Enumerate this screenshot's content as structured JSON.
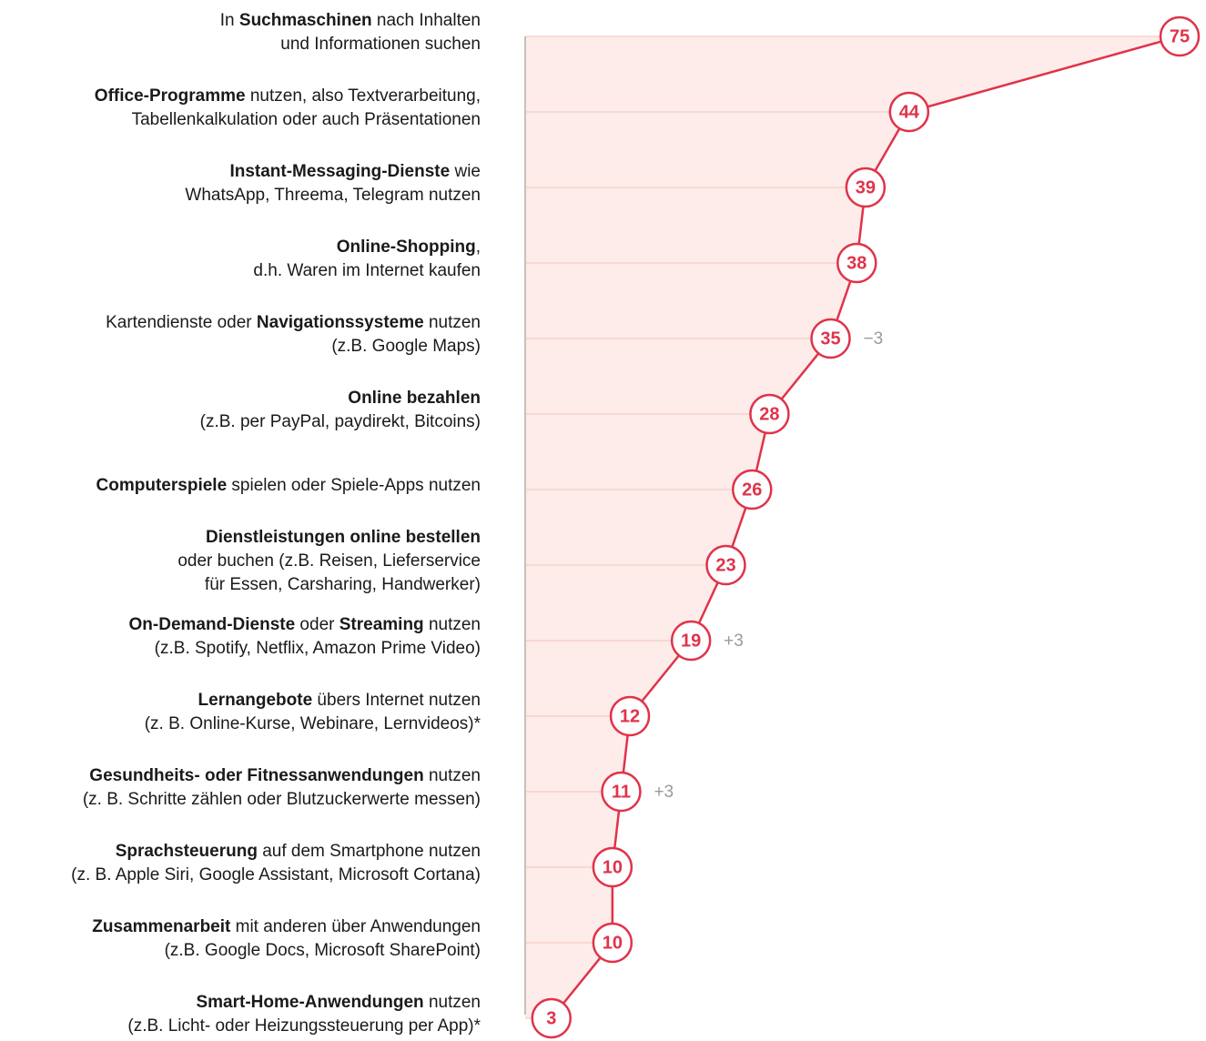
{
  "chart_data": {
    "type": "line",
    "categories": [
      [
        [
          {
            "text": "In "
          },
          {
            "text": "Suchmaschinen",
            "bold": true
          },
          {
            "text": " nach Inhalten"
          }
        ],
        [
          {
            "text": "und Informationen suchen"
          }
        ]
      ],
      [
        [
          {
            "text": "Office-Programme",
            "bold": true
          },
          {
            "text": " nutzen, also Textverarbeitung,"
          }
        ],
        [
          {
            "text": "Tabellenkalkulation oder auch Präsentationen"
          }
        ]
      ],
      [
        [
          {
            "text": "Instant-Messaging-Dienste",
            "bold": true
          },
          {
            "text": " wie"
          }
        ],
        [
          {
            "text": "WhatsApp, Threema, Telegram nutzen"
          }
        ]
      ],
      [
        [
          {
            "text": "Online-Shopping",
            "bold": true
          },
          {
            "text": ","
          }
        ],
        [
          {
            "text": "d.h. Waren im Internet kaufen"
          }
        ]
      ],
      [
        [
          {
            "text": "Kartendienste oder "
          },
          {
            "text": "Navigationssysteme",
            "bold": true
          },
          {
            "text": " nutzen"
          }
        ],
        [
          {
            "text": "(z.B. Google Maps)"
          }
        ]
      ],
      [
        [
          {
            "text": "Online bezahlen",
            "bold": true
          }
        ],
        [
          {
            "text": "(z.B. per PayPal, paydirekt, Bitcoins)"
          }
        ]
      ],
      [
        [
          {
            "text": "Computerspiele",
            "bold": true
          },
          {
            "text": " spielen oder Spiele-Apps nutzen"
          }
        ]
      ],
      [
        [
          {
            "text": "Dienstleistungen online bestellen",
            "bold": true
          }
        ],
        [
          {
            "text": "oder buchen (z.B. Reisen, Lieferservice"
          }
        ],
        [
          {
            "text": "für Essen, Carsharing, Handwerker)"
          }
        ]
      ],
      [
        [
          {
            "text": "On-Demand-Dienste",
            "bold": true
          },
          {
            "text": " oder "
          },
          {
            "text": "Streaming",
            "bold": true
          },
          {
            "text": " nutzen"
          }
        ],
        [
          {
            "text": "(z.B. Spotify, Netflix, Amazon Prime Video)"
          }
        ]
      ],
      [
        [
          {
            "text": "Lernangebote",
            "bold": true
          },
          {
            "text": " übers Internet nutzen"
          }
        ],
        [
          {
            "text": "(z. B. Online-Kurse, Webinare, Lernvideos)*"
          }
        ]
      ],
      [
        [
          {
            "text": "Gesundheits- oder Fitnessanwendungen",
            "bold": true
          },
          {
            "text": " nutzen"
          }
        ],
        [
          {
            "text": "(z. B. Schritte zählen oder Blutzuckerwerte messen)"
          }
        ]
      ],
      [
        [
          {
            "text": "Sprachsteuerung",
            "bold": true
          },
          {
            "text": " auf dem Smartphone nutzen"
          }
        ],
        [
          {
            "text": "(z. B. Apple Siri, Google Assistant, Microsoft Cortana)"
          }
        ]
      ],
      [
        [
          {
            "text": "Zusammenarbeit",
            "bold": true
          },
          {
            "text": " mit anderen über Anwendungen"
          }
        ],
        [
          {
            "text": "(z.B. Google Docs, Microsoft SharePoint)"
          }
        ]
      ],
      [
        [
          {
            "text": "Smart-Home-Anwendungen",
            "bold": true
          },
          {
            "text": " nutzen"
          }
        ],
        [
          {
            "text": "(z.B. Licht- oder Heizungssteuerung per App)*"
          }
        ]
      ]
    ],
    "values": [
      75,
      44,
      39,
      38,
      35,
      28,
      26,
      23,
      19,
      12,
      11,
      10,
      10,
      3
    ],
    "changes": [
      null,
      null,
      null,
      null,
      -3,
      null,
      null,
      null,
      3,
      null,
      3,
      null,
      null,
      null
    ],
    "change_labels": [
      null,
      null,
      null,
      null,
      "−3",
      null,
      null,
      null,
      "+3",
      null,
      "+3",
      null,
      null,
      null
    ],
    "color": "#e0334a",
    "area_color": "#fdece9",
    "xlim": [
      0,
      75
    ],
    "grid": true
  }
}
